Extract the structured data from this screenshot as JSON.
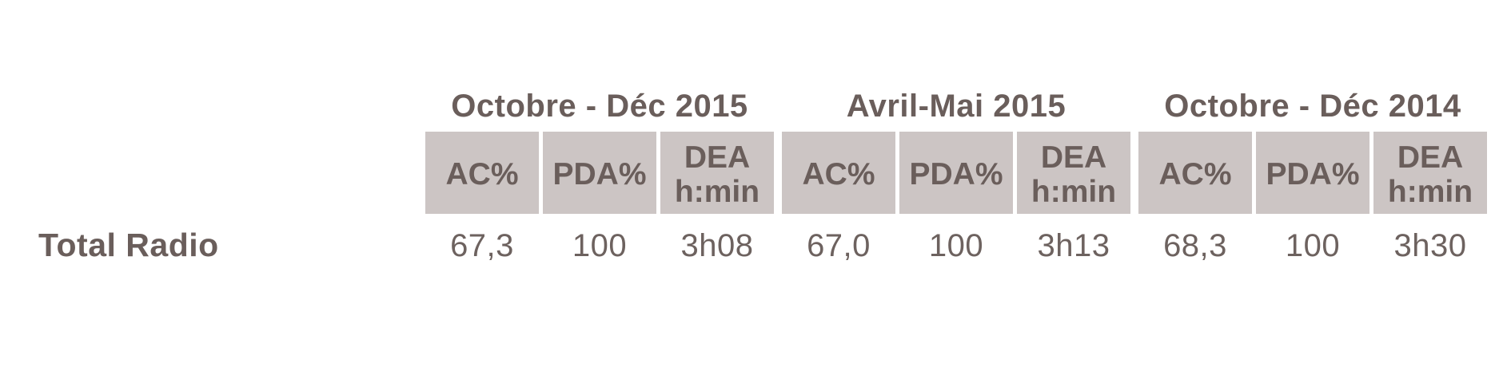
{
  "table": {
    "row_label": "Total Radio",
    "column_headers": [
      "AC%",
      "PDA%",
      "DEA\nh:min"
    ],
    "groups": [
      {
        "period": "Octobre - Déc 2015",
        "values": [
          "67,3",
          "100",
          "3h08"
        ]
      },
      {
        "period": "Avril-Mai 2015",
        "values": [
          "67,0",
          "100",
          "3h13"
        ]
      },
      {
        "period": "Octobre - Déc 2014",
        "values": [
          "68,3",
          "100",
          "3h30"
        ]
      }
    ],
    "colors": {
      "cell_background": "#ccc5c4",
      "header_text": "#6a5e5b",
      "data_text": "#6d625f",
      "page_background": "#ffffff"
    }
  }
}
